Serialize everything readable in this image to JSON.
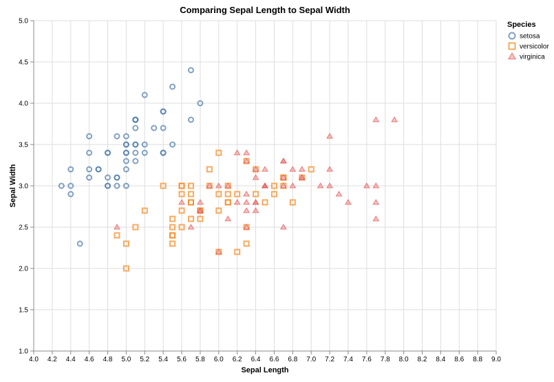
{
  "chart_data": {
    "type": "scatter",
    "title": "Comparing Sepal Length to Sepal Width",
    "xlabel": "Sepal Length",
    "ylabel": "Sepal Width",
    "xlim": [
      4.0,
      9.0
    ],
    "ylim": [
      1.0,
      5.0
    ],
    "xticks": [
      "4.0",
      "4.2",
      "4.4",
      "4.6",
      "4.8",
      "5.0",
      "5.2",
      "5.4",
      "5.6",
      "5.8",
      "6.0",
      "6.2",
      "6.4",
      "6.6",
      "6.8",
      "7.0",
      "7.2",
      "7.4",
      "7.6",
      "7.8",
      "8.0",
      "8.2",
      "8.4",
      "8.6",
      "8.8",
      "9.0"
    ],
    "yticks": [
      "1.0",
      "1.5",
      "2.0",
      "2.5",
      "3.0",
      "3.5",
      "4.0",
      "4.5",
      "5.0"
    ],
    "grid": true,
    "legend": {
      "title": "Species",
      "position": "top-right"
    },
    "series": [
      {
        "name": "setosa",
        "marker": "circle",
        "color": "#4c78a8",
        "points": [
          [
            5.1,
            3.5
          ],
          [
            4.9,
            3.0
          ],
          [
            4.7,
            3.2
          ],
          [
            4.6,
            3.1
          ],
          [
            5.0,
            3.6
          ],
          [
            5.4,
            3.9
          ],
          [
            4.6,
            3.4
          ],
          [
            5.0,
            3.4
          ],
          [
            4.4,
            2.9
          ],
          [
            4.9,
            3.1
          ],
          [
            5.4,
            3.7
          ],
          [
            4.8,
            3.4
          ],
          [
            4.8,
            3.0
          ],
          [
            4.3,
            3.0
          ],
          [
            5.8,
            4.0
          ],
          [
            5.7,
            4.4
          ],
          [
            5.4,
            3.9
          ],
          [
            5.1,
            3.5
          ],
          [
            5.7,
            3.8
          ],
          [
            5.1,
            3.8
          ],
          [
            5.4,
            3.4
          ],
          [
            5.1,
            3.7
          ],
          [
            4.6,
            3.6
          ],
          [
            5.1,
            3.3
          ],
          [
            4.8,
            3.4
          ],
          [
            5.0,
            3.0
          ],
          [
            5.0,
            3.4
          ],
          [
            5.2,
            3.5
          ],
          [
            5.2,
            3.4
          ],
          [
            4.7,
            3.2
          ],
          [
            4.8,
            3.1
          ],
          [
            5.4,
            3.4
          ],
          [
            5.2,
            4.1
          ],
          [
            5.5,
            4.2
          ],
          [
            4.9,
            3.1
          ],
          [
            5.0,
            3.2
          ],
          [
            5.5,
            3.5
          ],
          [
            4.9,
            3.6
          ],
          [
            4.4,
            3.0
          ],
          [
            5.1,
            3.4
          ],
          [
            5.0,
            3.5
          ],
          [
            4.5,
            2.3
          ],
          [
            4.4,
            3.2
          ],
          [
            5.0,
            3.5
          ],
          [
            5.1,
            3.8
          ],
          [
            4.8,
            3.0
          ],
          [
            5.1,
            3.8
          ],
          [
            4.6,
            3.2
          ],
          [
            5.3,
            3.7
          ],
          [
            5.0,
            3.3
          ]
        ]
      },
      {
        "name": "versicolor",
        "marker": "square",
        "color": "#f58518",
        "points": [
          [
            7.0,
            3.2
          ],
          [
            6.4,
            3.2
          ],
          [
            6.9,
            3.1
          ],
          [
            5.5,
            2.3
          ],
          [
            6.5,
            2.8
          ],
          [
            5.7,
            2.8
          ],
          [
            6.3,
            3.3
          ],
          [
            4.9,
            2.4
          ],
          [
            6.6,
            2.9
          ],
          [
            5.2,
            2.7
          ],
          [
            5.0,
            2.0
          ],
          [
            5.9,
            3.0
          ],
          [
            6.0,
            2.2
          ],
          [
            6.1,
            2.9
          ],
          [
            5.6,
            2.9
          ],
          [
            6.7,
            3.1
          ],
          [
            5.6,
            3.0
          ],
          [
            5.8,
            2.7
          ],
          [
            6.2,
            2.2
          ],
          [
            5.6,
            2.5
          ],
          [
            5.9,
            3.2
          ],
          [
            6.1,
            2.8
          ],
          [
            6.3,
            2.5
          ],
          [
            6.1,
            2.8
          ],
          [
            6.4,
            2.9
          ],
          [
            6.6,
            3.0
          ],
          [
            6.8,
            2.8
          ],
          [
            6.7,
            3.0
          ],
          [
            6.0,
            2.9
          ],
          [
            5.7,
            2.6
          ],
          [
            5.5,
            2.4
          ],
          [
            5.5,
            2.4
          ],
          [
            5.8,
            2.7
          ],
          [
            6.0,
            2.7
          ],
          [
            5.4,
            3.0
          ],
          [
            6.0,
            3.4
          ],
          [
            6.7,
            3.1
          ],
          [
            6.3,
            2.3
          ],
          [
            5.6,
            3.0
          ],
          [
            5.5,
            2.5
          ],
          [
            5.5,
            2.6
          ],
          [
            6.1,
            3.0
          ],
          [
            5.8,
            2.6
          ],
          [
            5.0,
            2.3
          ],
          [
            5.6,
            2.7
          ],
          [
            5.7,
            3.0
          ],
          [
            5.7,
            2.9
          ],
          [
            6.2,
            2.9
          ],
          [
            5.1,
            2.5
          ],
          [
            5.7,
            2.8
          ]
        ]
      },
      {
        "name": "virginica",
        "marker": "triangle",
        "color": "#e45756",
        "points": [
          [
            6.3,
            3.3
          ],
          [
            5.8,
            2.7
          ],
          [
            7.1,
            3.0
          ],
          [
            6.3,
            2.9
          ],
          [
            6.5,
            3.0
          ],
          [
            7.6,
            3.0
          ],
          [
            4.9,
            2.5
          ],
          [
            7.3,
            2.9
          ],
          [
            6.7,
            2.5
          ],
          [
            7.2,
            3.6
          ],
          [
            6.5,
            3.2
          ],
          [
            6.4,
            2.7
          ],
          [
            6.8,
            3.0
          ],
          [
            5.7,
            2.5
          ],
          [
            5.8,
            2.8
          ],
          [
            6.4,
            3.2
          ],
          [
            6.5,
            3.0
          ],
          [
            7.7,
            3.8
          ],
          [
            7.7,
            2.6
          ],
          [
            6.0,
            2.2
          ],
          [
            6.9,
            3.2
          ],
          [
            5.6,
            2.8
          ],
          [
            7.7,
            2.8
          ],
          [
            6.3,
            2.7
          ],
          [
            6.7,
            3.3
          ],
          [
            7.2,
            3.2
          ],
          [
            6.2,
            2.8
          ],
          [
            6.1,
            3.0
          ],
          [
            6.4,
            2.8
          ],
          [
            7.2,
            3.0
          ],
          [
            7.4,
            2.8
          ],
          [
            7.9,
            3.8
          ],
          [
            6.4,
            2.8
          ],
          [
            6.3,
            2.8
          ],
          [
            6.1,
            2.6
          ],
          [
            7.7,
            3.0
          ],
          [
            6.3,
            3.4
          ],
          [
            6.4,
            3.1
          ],
          [
            6.0,
            3.0
          ],
          [
            6.9,
            3.1
          ],
          [
            6.7,
            3.1
          ],
          [
            6.9,
            3.1
          ],
          [
            5.8,
            2.7
          ],
          [
            6.8,
            3.2
          ],
          [
            6.7,
            3.3
          ],
          [
            6.7,
            3.0
          ],
          [
            6.3,
            2.5
          ],
          [
            6.5,
            3.0
          ],
          [
            6.2,
            3.4
          ],
          [
            5.9,
            3.0
          ]
        ]
      }
    ]
  }
}
